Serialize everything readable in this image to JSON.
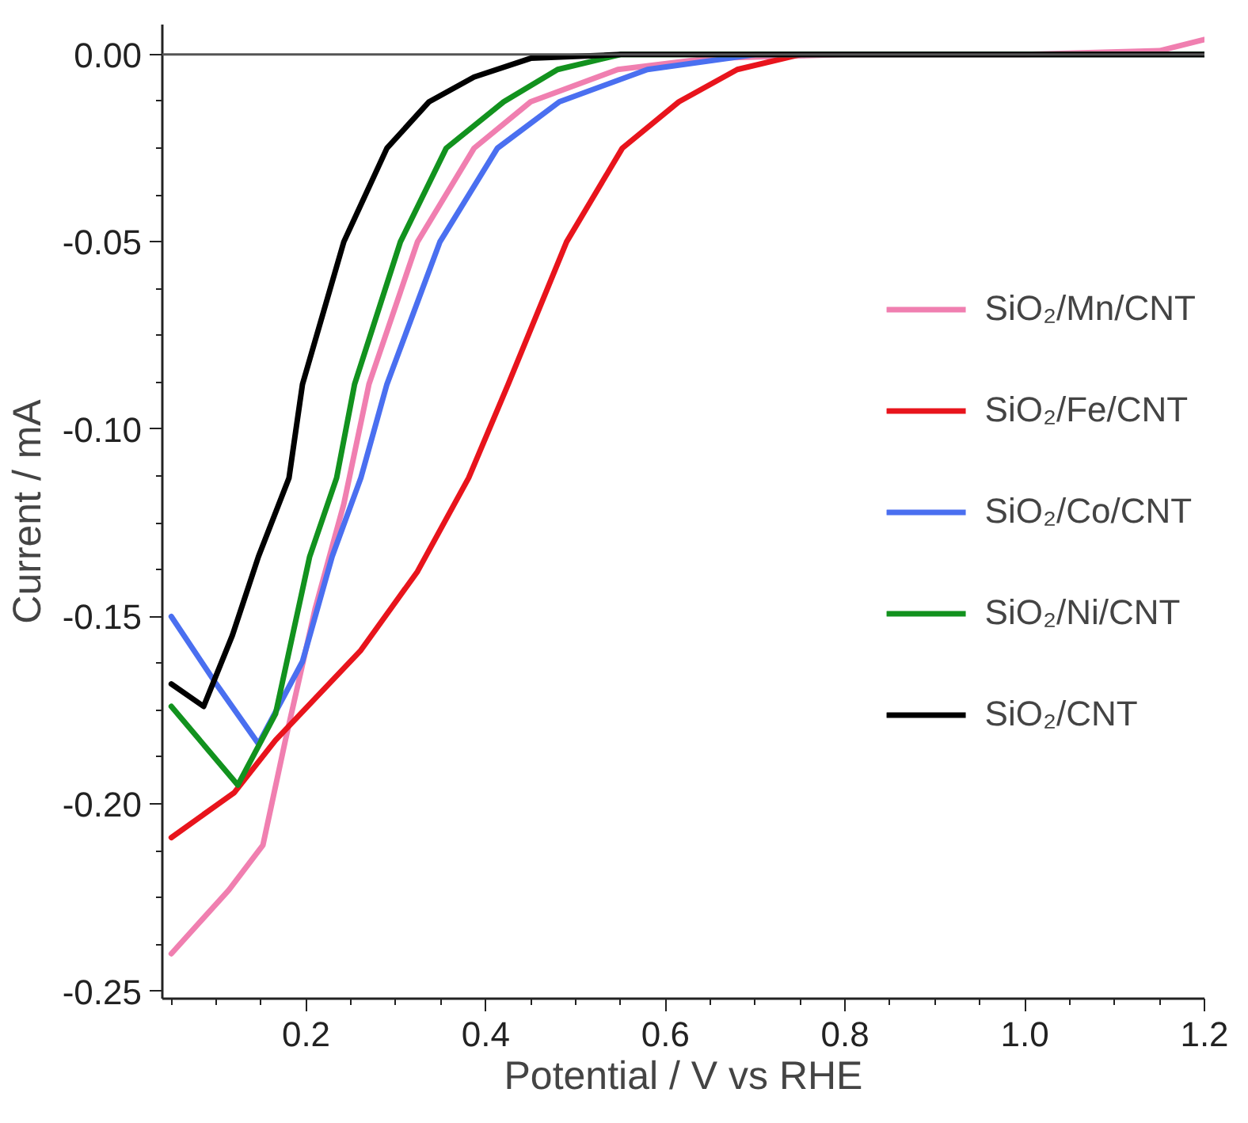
{
  "chart_data": {
    "type": "line",
    "xlabel": "Potential / V vs RHE",
    "ylabel": "Current / mA",
    "xlim": [
      0.04,
      1.2
    ],
    "ylim": [
      -0.252,
      0.008
    ],
    "xticks": [
      0.2,
      0.4,
      0.6,
      0.8,
      {
        "value": 1.0,
        "label": "1.0"
      },
      1.2
    ],
    "yticks": [
      {
        "value": 0,
        "label": "0.00"
      },
      {
        "value": -0.05,
        "label": "-0.05"
      },
      {
        "value": -0.1,
        "label": "-0.10"
      },
      {
        "value": -0.15,
        "label": "-0.15"
      },
      {
        "value": -0.2,
        "label": "-0.20"
      },
      {
        "value": -0.25,
        "label": "-0.25"
      }
    ],
    "grid": false,
    "legend": "right",
    "marker": "none",
    "line_style": "solid",
    "ref_lines": [
      {
        "axis": "y",
        "value": 0,
        "color": "#555555"
      }
    ],
    "series": [
      {
        "name": "SiO₂/Mn/CNT",
        "color": "#f07fb0",
        "x": [
          0.05,
          0.114,
          0.152,
          0.177,
          0.21,
          0.242,
          0.27,
          0.324,
          0.387,
          0.45,
          0.547,
          0.65,
          0.8,
          1.0,
          1.15,
          1.2
        ],
        "values": [
          -0.24,
          -0.223,
          -0.211,
          -0.183,
          -0.148,
          -0.12,
          -0.088,
          -0.05,
          -0.025,
          -0.0126,
          -0.004,
          -0.001,
          0,
          0,
          0.001,
          0.004
        ]
      },
      {
        "name": "SiO₂/Fe/CNT",
        "color": "#e8141c",
        "x": [
          0.05,
          0.12,
          0.166,
          0.261,
          0.324,
          0.381,
          0.425,
          0.49,
          0.552,
          0.615,
          0.68,
          0.75,
          1.0,
          1.2
        ],
        "values": [
          -0.209,
          -0.197,
          -0.183,
          -0.159,
          -0.138,
          -0.113,
          -0.088,
          -0.05,
          -0.025,
          -0.0126,
          -0.004,
          0,
          0,
          0
        ]
      },
      {
        "name": "SiO₂/Co/CNT",
        "color": "#4a6ff0",
        "x": [
          0.05,
          0.1,
          0.147,
          0.196,
          0.229,
          0.261,
          0.29,
          0.349,
          0.413,
          0.482,
          0.58,
          0.7,
          1.0,
          1.2
        ],
        "values": [
          -0.15,
          -0.168,
          -0.184,
          -0.162,
          -0.134,
          -0.113,
          -0.088,
          -0.05,
          -0.025,
          -0.0126,
          -0.004,
          0,
          0,
          0
        ]
      },
      {
        "name": "SiO₂/Ni/CNT",
        "color": "#12921e",
        "x": [
          0.05,
          0.124,
          0.166,
          0.185,
          0.204,
          0.234,
          0.254,
          0.305,
          0.356,
          0.42,
          0.48,
          0.55,
          1.0,
          1.2
        ],
        "values": [
          -0.174,
          -0.195,
          -0.176,
          -0.155,
          -0.134,
          -0.113,
          -0.088,
          -0.05,
          -0.025,
          -0.0126,
          -0.004,
          0,
          0,
          0
        ]
      },
      {
        "name": "SiO₂/CNT",
        "color": "#000000",
        "x": [
          0.05,
          0.086,
          0.118,
          0.147,
          0.181,
          0.196,
          0.242,
          0.29,
          0.337,
          0.387,
          0.45,
          0.55,
          1.0,
          1.2
        ],
        "values": [
          -0.168,
          -0.174,
          -0.155,
          -0.134,
          -0.113,
          -0.088,
          -0.05,
          -0.025,
          -0.0126,
          -0.006,
          -0.001,
          0,
          0,
          0
        ]
      }
    ]
  }
}
